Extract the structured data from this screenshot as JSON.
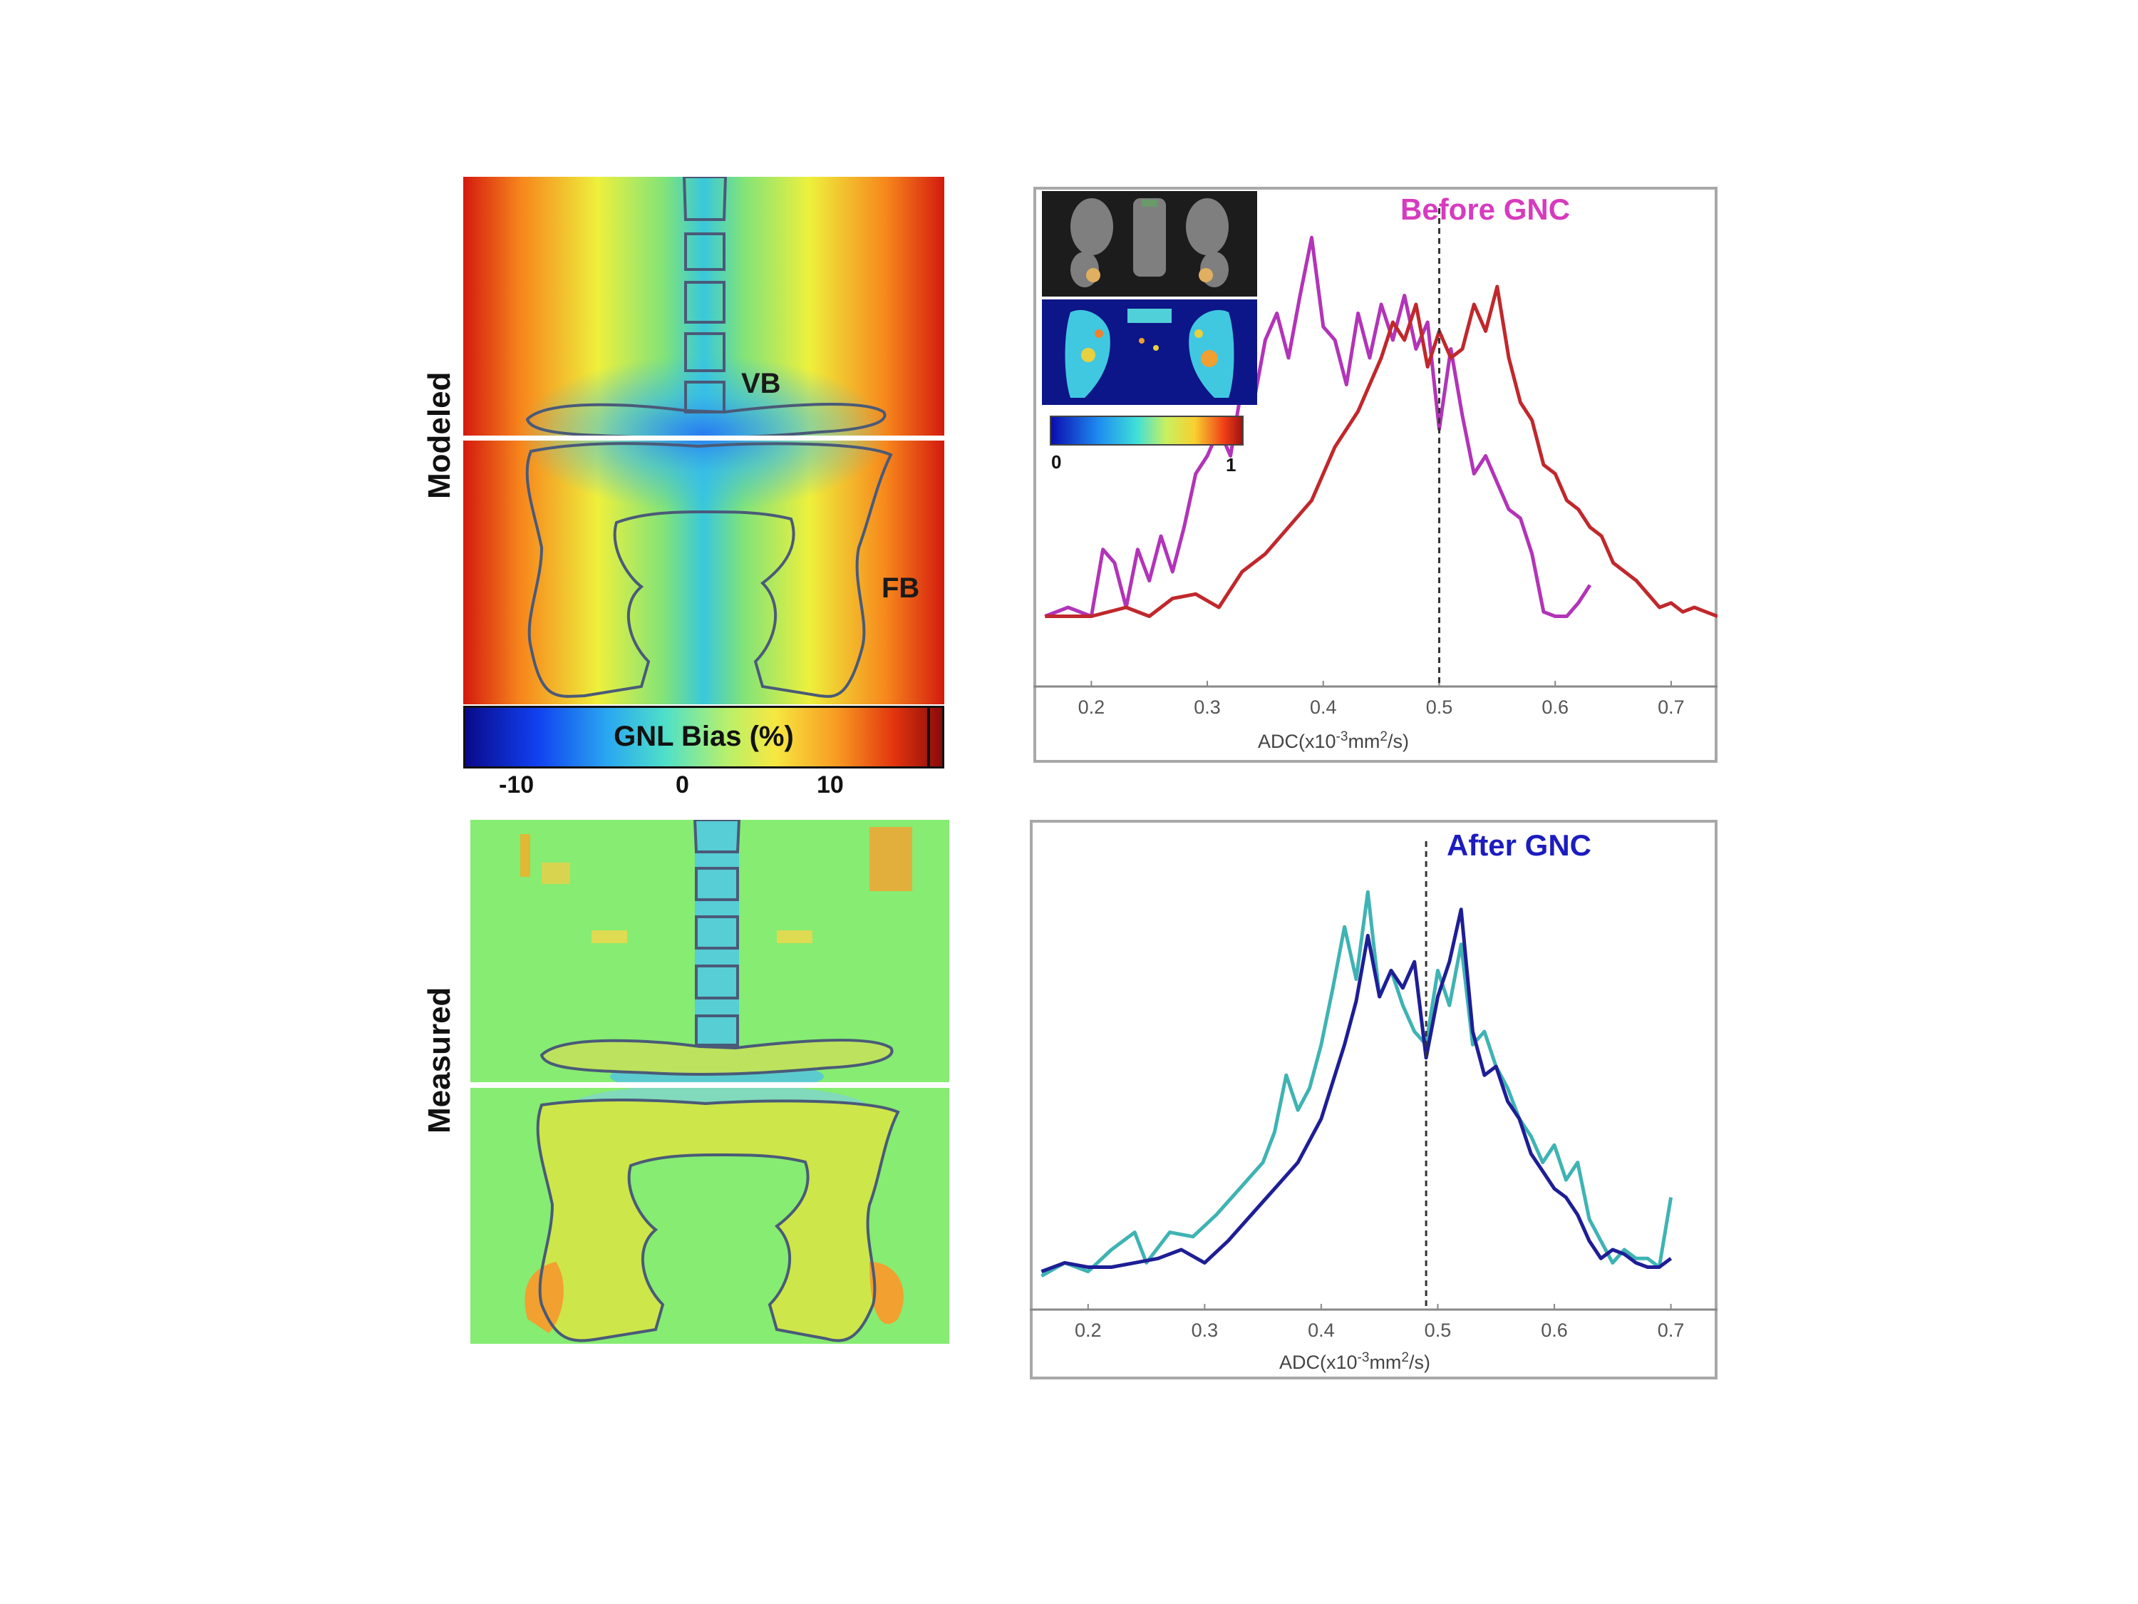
{
  "left": {
    "modeled_label": "Modeled",
    "measured_label": "Measured",
    "vb_label": "VB",
    "fb_label": "FB",
    "colorbar": {
      "title": "GNL Bias (%)",
      "ticks": [
        "-10",
        "0",
        "10"
      ]
    }
  },
  "inset": {
    "colorbar_ticks": [
      "0",
      "1"
    ]
  },
  "colors": {
    "before_title": "#d63bbf",
    "after_title": "#1c1cbf",
    "magenta": "#b234b8",
    "red": "#c0282c",
    "teal": "#3fb3b3",
    "navy": "#1e1e96",
    "panel_border": "#a8a8a8"
  },
  "chart_data": [
    {
      "type": "line",
      "title": "Before GNC",
      "xlabel": "ADC(x10-3mm2/s)",
      "ylabel": "",
      "xlim": [
        0.15,
        0.74
      ],
      "ylim": [
        0,
        1
      ],
      "xticks": [
        0.2,
        0.3,
        0.4,
        0.5,
        0.6,
        0.7
      ],
      "xtick_labels": [
        "0.2",
        "0.3",
        "0.4",
        "0.5",
        "0.6",
        "0.7"
      ],
      "vline": 0.5,
      "series": [
        {
          "name": "magenta",
          "color": "#b234b8",
          "x": [
            0.16,
            0.18,
            0.2,
            0.21,
            0.22,
            0.23,
            0.24,
            0.25,
            0.26,
            0.27,
            0.28,
            0.29,
            0.3,
            0.31,
            0.32,
            0.33,
            0.34,
            0.35,
            0.36,
            0.37,
            0.38,
            0.39,
            0.4,
            0.41,
            0.42,
            0.43,
            0.44,
            0.45,
            0.46,
            0.47,
            0.48,
            0.49,
            0.5,
            0.51,
            0.52,
            0.53,
            0.54,
            0.55,
            0.56,
            0.57,
            0.58,
            0.59,
            0.6,
            0.61,
            0.62,
            0.63
          ],
          "y": [
            0.1,
            0.12,
            0.1,
            0.25,
            0.22,
            0.12,
            0.25,
            0.18,
            0.28,
            0.2,
            0.3,
            0.42,
            0.46,
            0.52,
            0.46,
            0.62,
            0.58,
            0.72,
            0.78,
            0.68,
            0.82,
            0.95,
            0.75,
            0.72,
            0.62,
            0.78,
            0.68,
            0.8,
            0.72,
            0.82,
            0.7,
            0.76,
            0.52,
            0.7,
            0.55,
            0.42,
            0.46,
            0.4,
            0.34,
            0.32,
            0.24,
            0.11,
            0.1,
            0.1,
            0.13,
            0.17
          ]
        },
        {
          "name": "red",
          "color": "#c0282c",
          "x": [
            0.16,
            0.2,
            0.23,
            0.25,
            0.27,
            0.29,
            0.31,
            0.33,
            0.35,
            0.37,
            0.39,
            0.41,
            0.43,
            0.45,
            0.46,
            0.47,
            0.48,
            0.49,
            0.5,
            0.51,
            0.52,
            0.53,
            0.54,
            0.55,
            0.56,
            0.57,
            0.58,
            0.59,
            0.6,
            0.61,
            0.62,
            0.63,
            0.64,
            0.65,
            0.66,
            0.67,
            0.68,
            0.69,
            0.7,
            0.71,
            0.72,
            0.73,
            0.74
          ],
          "y": [
            0.1,
            0.1,
            0.12,
            0.1,
            0.14,
            0.15,
            0.12,
            0.2,
            0.24,
            0.3,
            0.36,
            0.48,
            0.56,
            0.68,
            0.76,
            0.72,
            0.8,
            0.66,
            0.74,
            0.68,
            0.7,
            0.8,
            0.74,
            0.84,
            0.68,
            0.58,
            0.54,
            0.44,
            0.42,
            0.36,
            0.34,
            0.3,
            0.28,
            0.22,
            0.2,
            0.18,
            0.15,
            0.12,
            0.13,
            0.11,
            0.12,
            0.11,
            0.1
          ]
        }
      ]
    },
    {
      "type": "line",
      "title": "After GNC",
      "xlabel": "ADC(x10-3mm2/s)",
      "ylabel": "",
      "xlim": [
        0.15,
        0.74
      ],
      "ylim": [
        0,
        1
      ],
      "xticks": [
        0.2,
        0.3,
        0.4,
        0.5,
        0.6,
        0.7
      ],
      "xtick_labels": [
        "0.2",
        "0.3",
        "0.4",
        "0.5",
        "0.6",
        "0.7"
      ],
      "vline": 0.49,
      "series": [
        {
          "name": "teal",
          "color": "#3fb3b3",
          "x": [
            0.16,
            0.18,
            0.2,
            0.22,
            0.24,
            0.25,
            0.27,
            0.29,
            0.31,
            0.33,
            0.35,
            0.36,
            0.37,
            0.38,
            0.39,
            0.4,
            0.41,
            0.42,
            0.43,
            0.44,
            0.45,
            0.46,
            0.47,
            0.48,
            0.49,
            0.5,
            0.51,
            0.52,
            0.53,
            0.54,
            0.55,
            0.56,
            0.57,
            0.58,
            0.59,
            0.6,
            0.61,
            0.62,
            0.63,
            0.64,
            0.65,
            0.66,
            0.67,
            0.68,
            0.69,
            0.7
          ],
          "y": [
            0.02,
            0.05,
            0.03,
            0.08,
            0.12,
            0.05,
            0.12,
            0.11,
            0.16,
            0.22,
            0.28,
            0.35,
            0.48,
            0.4,
            0.45,
            0.55,
            0.68,
            0.82,
            0.7,
            0.9,
            0.66,
            0.72,
            0.64,
            0.58,
            0.55,
            0.72,
            0.64,
            0.78,
            0.55,
            0.58,
            0.5,
            0.45,
            0.38,
            0.34,
            0.28,
            0.32,
            0.24,
            0.28,
            0.15,
            0.1,
            0.05,
            0.08,
            0.06,
            0.06,
            0.04,
            0.2
          ]
        },
        {
          "name": "navy",
          "color": "#1e1e96",
          "x": [
            0.16,
            0.18,
            0.2,
            0.22,
            0.24,
            0.26,
            0.28,
            0.3,
            0.32,
            0.34,
            0.36,
            0.38,
            0.4,
            0.42,
            0.43,
            0.44,
            0.45,
            0.46,
            0.47,
            0.48,
            0.49,
            0.5,
            0.51,
            0.52,
            0.53,
            0.54,
            0.55,
            0.56,
            0.57,
            0.58,
            0.59,
            0.6,
            0.61,
            0.62,
            0.63,
            0.64,
            0.65,
            0.66,
            0.67,
            0.68,
            0.69,
            0.7
          ],
          "y": [
            0.03,
            0.05,
            0.04,
            0.04,
            0.05,
            0.06,
            0.08,
            0.05,
            0.1,
            0.16,
            0.22,
            0.28,
            0.38,
            0.55,
            0.65,
            0.8,
            0.66,
            0.72,
            0.68,
            0.74,
            0.52,
            0.66,
            0.74,
            0.86,
            0.58,
            0.48,
            0.5,
            0.42,
            0.38,
            0.3,
            0.26,
            0.22,
            0.2,
            0.16,
            0.1,
            0.06,
            0.08,
            0.07,
            0.05,
            0.04,
            0.04,
            0.06
          ]
        }
      ]
    }
  ]
}
